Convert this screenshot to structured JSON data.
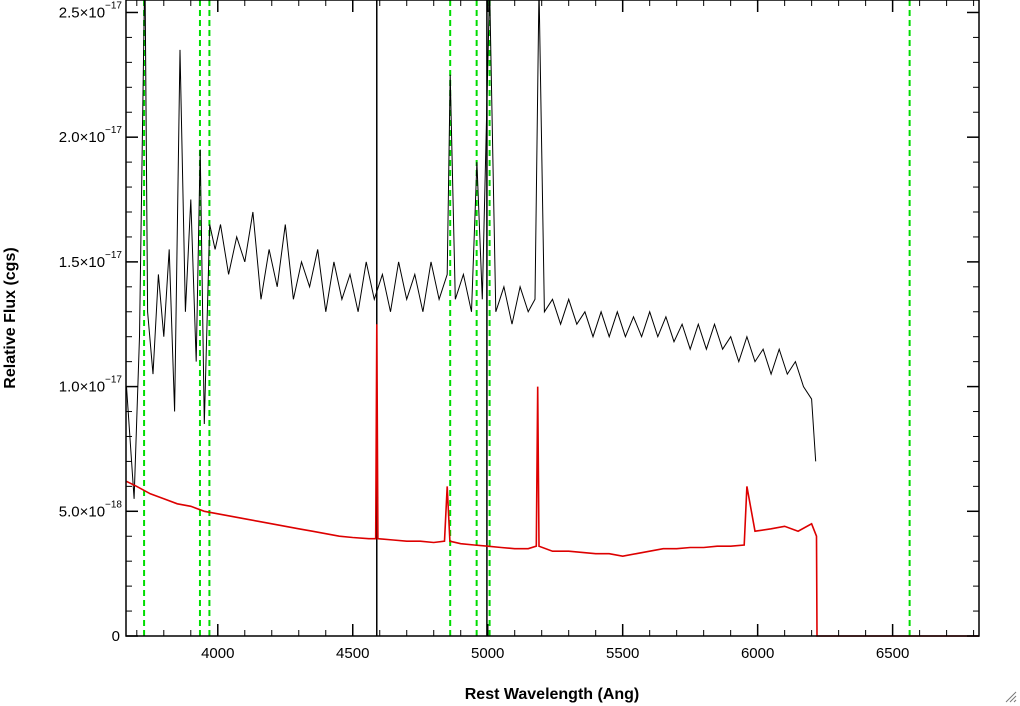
{
  "chart_data": {
    "type": "line",
    "xlabel": "Rest Wavelength (Ang)",
    "ylabel": "Relative Flux (cgs)",
    "xlim": [
      3660,
      6820
    ],
    "ylim": [
      0,
      2.55e-17
    ],
    "x_ticks": [
      {
        "value": 4000,
        "label": "4000"
      },
      {
        "value": 4500,
        "label": "4500"
      },
      {
        "value": 5000,
        "label": "5000"
      },
      {
        "value": 5500,
        "label": "5500"
      },
      {
        "value": 6000,
        "label": "6000"
      },
      {
        "value": 6500,
        "label": "6500"
      }
    ],
    "y_ticks": [
      {
        "value": 0,
        "mantissa": "0",
        "exponent": ""
      },
      {
        "value": 5e-18,
        "mantissa": "5.0×10",
        "exponent": "−18"
      },
      {
        "value": 1e-17,
        "mantissa": "1.0×10",
        "exponent": "−17"
      },
      {
        "value": 1.5e-17,
        "mantissa": "1.5×10",
        "exponent": "−17"
      },
      {
        "value": 2e-17,
        "mantissa": "2.0×10",
        "exponent": "−17"
      },
      {
        "value": 2.5e-17,
        "mantissa": "2.5×10",
        "exponent": "−17"
      }
    ],
    "grid": false,
    "series": [
      {
        "color": "#000000",
        "points": [
          [
            3662,
            1e-17
          ],
          [
            3690,
            5.5e-18
          ],
          [
            3710,
            1.2e-17
          ],
          [
            3730,
            2.7e-17
          ],
          [
            3740,
            1.3e-17
          ],
          [
            3760,
            1.05e-17
          ],
          [
            3780,
            1.45e-17
          ],
          [
            3800,
            1.2e-17
          ],
          [
            3820,
            1.55e-17
          ],
          [
            3840,
            9e-18
          ],
          [
            3860,
            2.35e-17
          ],
          [
            3880,
            1.3e-17
          ],
          [
            3900,
            1.75e-17
          ],
          [
            3920,
            1.1e-17
          ],
          [
            3935,
            1.95e-17
          ],
          [
            3950,
            8.5e-18
          ],
          [
            3970,
            1.65e-17
          ],
          [
            3990,
            1.55e-17
          ],
          [
            4010,
            1.65e-17
          ],
          [
            4040,
            1.45e-17
          ],
          [
            4070,
            1.6e-17
          ],
          [
            4100,
            1.5e-17
          ],
          [
            4130,
            1.7e-17
          ],
          [
            4160,
            1.35e-17
          ],
          [
            4190,
            1.55e-17
          ],
          [
            4220,
            1.4e-17
          ],
          [
            4250,
            1.65e-17
          ],
          [
            4280,
            1.35e-17
          ],
          [
            4310,
            1.5e-17
          ],
          [
            4340,
            1.4e-17
          ],
          [
            4370,
            1.55e-17
          ],
          [
            4400,
            1.3e-17
          ],
          [
            4430,
            1.5e-17
          ],
          [
            4460,
            1.35e-17
          ],
          [
            4490,
            1.45e-17
          ],
          [
            4520,
            1.3e-17
          ],
          [
            4550,
            1.5e-17
          ],
          [
            4580,
            1.35e-17
          ],
          [
            4610,
            1.45e-17
          ],
          [
            4640,
            1.3e-17
          ],
          [
            4670,
            1.5e-17
          ],
          [
            4700,
            1.35e-17
          ],
          [
            4730,
            1.45e-17
          ],
          [
            4760,
            1.3e-17
          ],
          [
            4790,
            1.5e-17
          ],
          [
            4820,
            1.35e-17
          ],
          [
            4850,
            1.45e-17
          ],
          [
            4861,
            2.25e-17
          ],
          [
            4880,
            1.35e-17
          ],
          [
            4910,
            1.45e-17
          ],
          [
            4940,
            1.3e-17
          ],
          [
            4960,
            1.9e-17
          ],
          [
            4980,
            1.35e-17
          ],
          [
            5007,
            2.6e-17
          ],
          [
            5030,
            1.3e-17
          ],
          [
            5060,
            1.4e-17
          ],
          [
            5090,
            1.25e-17
          ],
          [
            5120,
            1.4e-17
          ],
          [
            5150,
            1.3e-17
          ],
          [
            5175,
            1.35e-17
          ],
          [
            5190,
            2.6e-17
          ],
          [
            5210,
            1.3e-17
          ],
          [
            5240,
            1.35e-17
          ],
          [
            5270,
            1.25e-17
          ],
          [
            5300,
            1.35e-17
          ],
          [
            5330,
            1.25e-17
          ],
          [
            5360,
            1.3e-17
          ],
          [
            5390,
            1.2e-17
          ],
          [
            5420,
            1.3e-17
          ],
          [
            5450,
            1.2e-17
          ],
          [
            5480,
            1.3e-17
          ],
          [
            5510,
            1.2e-17
          ],
          [
            5540,
            1.28e-17
          ],
          [
            5570,
            1.2e-17
          ],
          [
            5600,
            1.3e-17
          ],
          [
            5630,
            1.2e-17
          ],
          [
            5660,
            1.28e-17
          ],
          [
            5690,
            1.18e-17
          ],
          [
            5720,
            1.25e-17
          ],
          [
            5750,
            1.15e-17
          ],
          [
            5780,
            1.25e-17
          ],
          [
            5810,
            1.15e-17
          ],
          [
            5840,
            1.25e-17
          ],
          [
            5870,
            1.15e-17
          ],
          [
            5900,
            1.2e-17
          ],
          [
            5930,
            1.1e-17
          ],
          [
            5960,
            1.2e-17
          ],
          [
            5990,
            1.1e-17
          ],
          [
            6020,
            1.15e-17
          ],
          [
            6050,
            1.05e-17
          ],
          [
            6080,
            1.15e-17
          ],
          [
            6110,
            1.05e-17
          ],
          [
            6140,
            1.1e-17
          ],
          [
            6170,
            1e-17
          ],
          [
            6200,
            9.5e-18
          ],
          [
            6215,
            7e-18
          ]
        ]
      },
      {
        "color": "#dd0000",
        "points": [
          [
            3662,
            6.2e-18
          ],
          [
            3700,
            6e-18
          ],
          [
            3750,
            5.7e-18
          ],
          [
            3800,
            5.5e-18
          ],
          [
            3850,
            5.3e-18
          ],
          [
            3900,
            5.2e-18
          ],
          [
            3950,
            5e-18
          ],
          [
            4000,
            4.9e-18
          ],
          [
            4050,
            4.8e-18
          ],
          [
            4100,
            4.7e-18
          ],
          [
            4150,
            4.6e-18
          ],
          [
            4200,
            4.5e-18
          ],
          [
            4250,
            4.4e-18
          ],
          [
            4300,
            4.3e-18
          ],
          [
            4350,
            4.2e-18
          ],
          [
            4400,
            4.1e-18
          ],
          [
            4450,
            4e-18
          ],
          [
            4500,
            3.95e-18
          ],
          [
            4560,
            3.9e-18
          ],
          [
            4585,
            3.9e-18
          ],
          [
            4589,
            1.25e-17
          ],
          [
            4593,
            3.9e-18
          ],
          [
            4650,
            3.85e-18
          ],
          [
            4700,
            3.8e-18
          ],
          [
            4750,
            3.8e-18
          ],
          [
            4800,
            3.75e-18
          ],
          [
            4840,
            3.8e-18
          ],
          [
            4850,
            6e-18
          ],
          [
            4860,
            3.8e-18
          ],
          [
            4900,
            3.7e-18
          ],
          [
            4950,
            3.65e-18
          ],
          [
            5000,
            3.6e-18
          ],
          [
            5050,
            3.55e-18
          ],
          [
            5100,
            3.5e-18
          ],
          [
            5150,
            3.5e-18
          ],
          [
            5180,
            3.6e-18
          ],
          [
            5185,
            1e-17
          ],
          [
            5190,
            3.6e-18
          ],
          [
            5240,
            3.4e-18
          ],
          [
            5300,
            3.4e-18
          ],
          [
            5350,
            3.35e-18
          ],
          [
            5400,
            3.3e-18
          ],
          [
            5450,
            3.3e-18
          ],
          [
            5500,
            3.2e-18
          ],
          [
            5550,
            3.3e-18
          ],
          [
            5600,
            3.4e-18
          ],
          [
            5650,
            3.5e-18
          ],
          [
            5700,
            3.5e-18
          ],
          [
            5750,
            3.55e-18
          ],
          [
            5800,
            3.55e-18
          ],
          [
            5850,
            3.6e-18
          ],
          [
            5900,
            3.6e-18
          ],
          [
            5950,
            3.65e-18
          ],
          [
            5960,
            6e-18
          ],
          [
            5990,
            4.2e-18
          ],
          [
            6050,
            4.3e-18
          ],
          [
            6100,
            4.4e-18
          ],
          [
            6150,
            4.2e-18
          ],
          [
            6200,
            4.5e-18
          ],
          [
            6218,
            4e-18
          ],
          [
            6220,
            0.0
          ],
          [
            6820,
            0.0
          ]
        ]
      }
    ],
    "vertical_lines": [
      {
        "x": 3727,
        "color": "#00dd00",
        "style": "dashed"
      },
      {
        "x": 3934,
        "color": "#00dd00",
        "style": "dashed"
      },
      {
        "x": 3969,
        "color": "#00dd00",
        "style": "dashed"
      },
      {
        "x": 4861,
        "color": "#00dd00",
        "style": "dashed"
      },
      {
        "x": 4959,
        "color": "#00dd00",
        "style": "dashed"
      },
      {
        "x": 5007,
        "color": "#00dd00",
        "style": "dashed"
      },
      {
        "x": 6563,
        "color": "#00dd00",
        "style": "dashed"
      },
      {
        "x": 4589,
        "color": "#000000",
        "style": "solid"
      },
      {
        "x": 4997,
        "color": "#000000",
        "style": "solid"
      }
    ]
  }
}
